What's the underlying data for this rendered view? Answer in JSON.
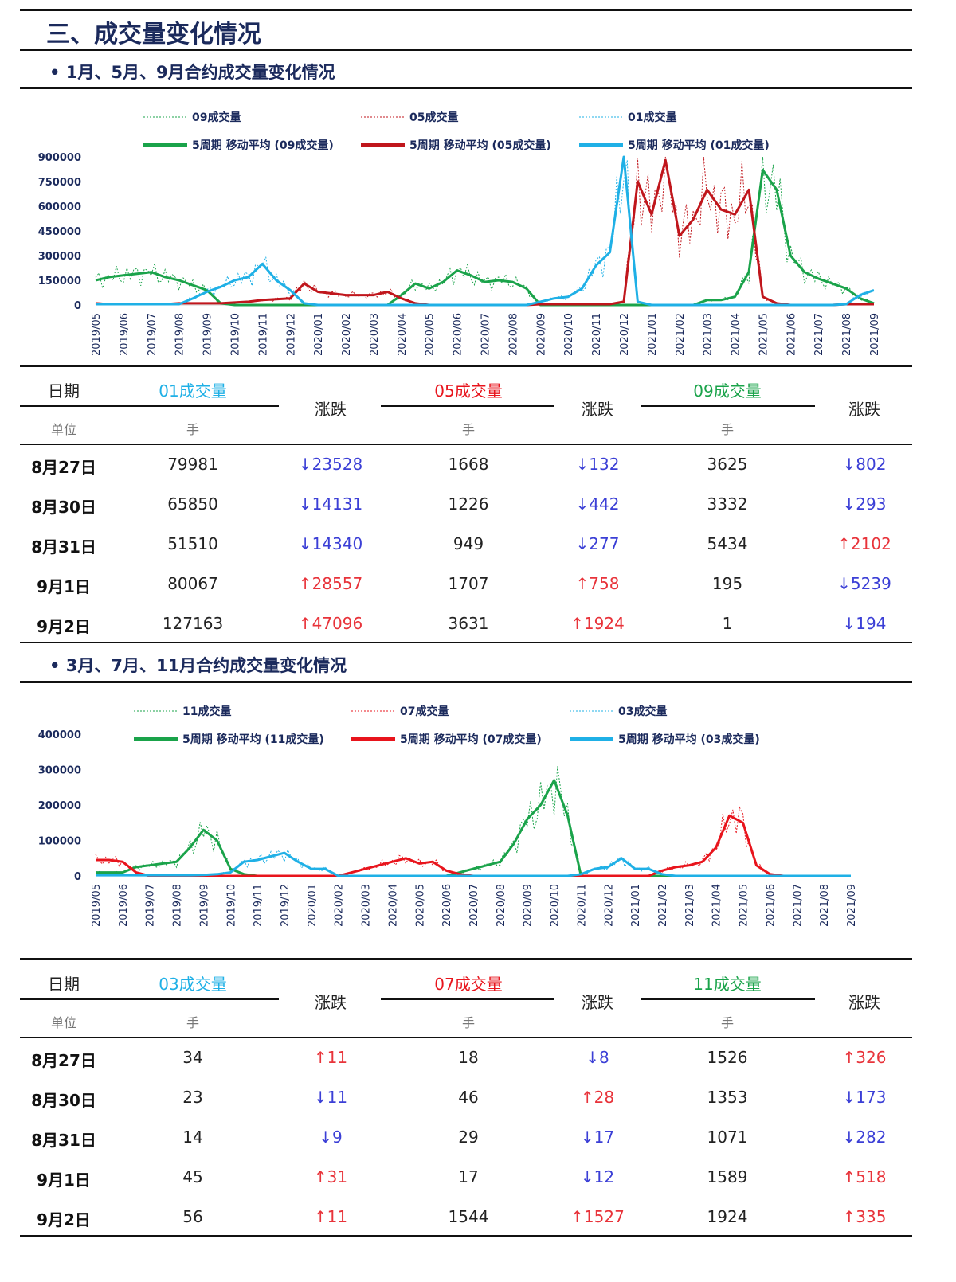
{
  "page_title": "三、成交量变化情况",
  "section1": {
    "title": "• 1月、5月、9月合约成交量变化情况",
    "chart_data": {
      "type": "line",
      "x_ticks": [
        "2019/05",
        "2019/06",
        "2019/07",
        "2019/08",
        "2019/09",
        "2019/10",
        "2019/11",
        "2019/12",
        "2020/01",
        "2020/02",
        "2020/03",
        "2020/04",
        "2020/05",
        "2020/06",
        "2020/07",
        "2020/08",
        "2020/09",
        "2020/10",
        "2020/11",
        "2020/12",
        "2021/01",
        "2021/02",
        "2021/03",
        "2021/04",
        "2021/05",
        "2021/06",
        "2021/07",
        "2021/08",
        "2021/09"
      ],
      "x_resolution": "semi-monthly from 2019/05 to 2021/09",
      "y_ticks": [
        "0",
        "150000",
        "300000",
        "450000",
        "600000",
        "750000",
        "900000"
      ],
      "ylim": [
        0,
        900000
      ],
      "legend_placement": "top",
      "legend": [
        "09成交量",
        "05成交量",
        "01成交量",
        "5周期 移动平均 (09成交量)",
        "5周期 移动平均 (05成交量)",
        "5周期 移动平均 (01成交量)"
      ],
      "series": [
        {
          "name": "5周期 移动平均 (09成交量)",
          "raw_name": "09成交量",
          "color": "#1aa34a",
          "values": [
            150000,
            170000,
            180000,
            190000,
            200000,
            170000,
            150000,
            120000,
            90000,
            10000,
            0,
            0,
            0,
            0,
            0,
            0,
            0,
            0,
            0,
            0,
            0,
            0,
            60000,
            130000,
            100000,
            140000,
            210000,
            180000,
            140000,
            150000,
            140000,
            100000,
            0,
            0,
            0,
            0,
            0,
            0,
            0,
            0,
            0,
            0,
            0,
            0,
            30000,
            30000,
            50000,
            200000,
            820000,
            700000,
            300000,
            200000,
            160000,
            130000,
            100000,
            40000,
            10000
          ]
        },
        {
          "name": "5周期 移动平均 (05成交量)",
          "raw_name": "05成交量",
          "color": "#c0161c",
          "values": [
            10000,
            5000,
            5000,
            5000,
            5000,
            5000,
            10000,
            10000,
            10000,
            10000,
            15000,
            20000,
            30000,
            35000,
            40000,
            130000,
            80000,
            70000,
            60000,
            60000,
            60000,
            80000,
            40000,
            10000,
            0,
            0,
            0,
            0,
            0,
            0,
            0,
            0,
            5000,
            5000,
            5000,
            5000,
            5000,
            5000,
            20000,
            750000,
            550000,
            880000,
            420000,
            520000,
            700000,
            580000,
            550000,
            700000,
            50000,
            10000,
            0,
            0,
            0,
            0,
            5000,
            5000,
            5000
          ]
        },
        {
          "name": "5周期 移动平均 (01成交量)",
          "raw_name": "01成交量",
          "color": "#1fb0e6",
          "values": [
            5000,
            5000,
            5000,
            5000,
            5000,
            5000,
            5000,
            40000,
            80000,
            110000,
            150000,
            170000,
            250000,
            150000,
            90000,
            10000,
            0,
            0,
            0,
            0,
            0,
            0,
            0,
            0,
            0,
            0,
            0,
            0,
            0,
            0,
            0,
            0,
            20000,
            40000,
            50000,
            100000,
            240000,
            320000,
            900000,
            20000,
            0,
            0,
            0,
            0,
            0,
            0,
            0,
            0,
            0,
            0,
            0,
            0,
            0,
            0,
            5000,
            60000,
            90000
          ]
        }
      ]
    },
    "table": {
      "headers": {
        "date": "日期",
        "c1": "01成交量",
        "chg": "涨跌",
        "c2": "05成交量",
        "c3": "09成交量",
        "unit_label": "单位",
        "unit": "手"
      },
      "header_colors": {
        "c1": "#1fb0e6",
        "c2": "#e8141c",
        "c3": "#1aa34a"
      },
      "rows": [
        {
          "date": "8月27日",
          "v1": "79981",
          "d1": "↓23528",
          "v2": "1668",
          "d2": "↓132",
          "v3": "3625",
          "d3": "↓802"
        },
        {
          "date": "8月30日",
          "v1": "65850",
          "d1": "↓14131",
          "v2": "1226",
          "d2": "↓442",
          "v3": "3332",
          "d3": "↓293"
        },
        {
          "date": "8月31日",
          "v1": "51510",
          "d1": "↓14340",
          "v2": "949",
          "d2": "↓277",
          "v3": "5434",
          "d3": "↑2102"
        },
        {
          "date": "9月1日",
          "v1": "80067",
          "d1": "↑28557",
          "v2": "1707",
          "d2": "↑758",
          "v3": "195",
          "d3": "↓5239"
        },
        {
          "date": "9月2日",
          "v1": "127163",
          "d1": "↑47096",
          "v2": "3631",
          "d2": "↑1924",
          "v3": "1",
          "d3": "↓194"
        }
      ]
    }
  },
  "section2": {
    "title": "• 3月、7月、11月合约成交量变化情况",
    "chart_data": {
      "type": "line",
      "x_ticks": [
        "2019/05",
        "2019/06",
        "2019/07",
        "2019/08",
        "2019/09",
        "2019/10",
        "2019/11",
        "2019/12",
        "2020/01",
        "2020/02",
        "2020/03",
        "2020/04",
        "2020/05",
        "2020/06",
        "2020/07",
        "2020/08",
        "2020/09",
        "2020/10",
        "2020/11",
        "2020/12",
        "2021/01",
        "2021/02",
        "2021/03",
        "2021/04",
        "2021/05",
        "2021/06",
        "2021/07",
        "2021/08",
        "2021/09"
      ],
      "x_resolution": "semi-monthly from 2019/05 to 2021/09",
      "y_ticks": [
        "0",
        "100000",
        "200000",
        "300000",
        "400000"
      ],
      "ylim": [
        0,
        400000
      ],
      "legend_placement": "top",
      "legend": [
        "11成交量",
        "07成交量",
        "03成交量",
        "5周期 移动平均 (11成交量)",
        "5周期 移动平均 (07成交量)",
        "5周期 移动平均 (03成交量)"
      ],
      "series": [
        {
          "name": "5周期 移动平均 (11成交量)",
          "raw_name": "11成交量",
          "color": "#1aa34a",
          "values": [
            10000,
            10000,
            10000,
            25000,
            30000,
            35000,
            40000,
            80000,
            130000,
            100000,
            20000,
            5000,
            0,
            0,
            0,
            0,
            0,
            0,
            0,
            0,
            0,
            0,
            0,
            0,
            0,
            0,
            0,
            10000,
            20000,
            30000,
            40000,
            90000,
            160000,
            200000,
            270000,
            170000,
            0,
            0,
            0,
            0,
            0,
            0,
            0,
            0,
            0,
            0,
            0,
            0,
            0,
            0,
            0,
            0,
            0,
            0,
            0,
            0,
            0
          ]
        },
        {
          "name": "5周期 移动平均 (07成交量)",
          "raw_name": "07成交量",
          "color": "#e8141c",
          "values": [
            45000,
            45000,
            40000,
            10000,
            0,
            0,
            0,
            0,
            0,
            0,
            0,
            0,
            0,
            0,
            0,
            0,
            0,
            0,
            0,
            10000,
            20000,
            30000,
            40000,
            50000,
            35000,
            40000,
            15000,
            5000,
            0,
            0,
            0,
            0,
            0,
            0,
            0,
            0,
            0,
            0,
            0,
            0,
            0,
            0,
            15000,
            25000,
            30000,
            40000,
            80000,
            170000,
            150000,
            30000,
            5000,
            0,
            0,
            0,
            0,
            0,
            0
          ]
        },
        {
          "name": "5周期 移动平均 (03成交量)",
          "raw_name": "03成交量",
          "color": "#1fb0e6",
          "values": [
            2000,
            2000,
            2000,
            2000,
            2000,
            2000,
            2000,
            2000,
            3000,
            5000,
            10000,
            40000,
            45000,
            55000,
            65000,
            40000,
            20000,
            20000,
            0,
            0,
            0,
            0,
            0,
            0,
            0,
            0,
            0,
            0,
            0,
            0,
            0,
            0,
            0,
            0,
            0,
            0,
            5000,
            20000,
            25000,
            50000,
            20000,
            20000,
            5000,
            0,
            0,
            0,
            0,
            0,
            0,
            0,
            0,
            0,
            0,
            0,
            0,
            0,
            0
          ]
        }
      ]
    },
    "table": {
      "headers": {
        "date": "日期",
        "c1": "03成交量",
        "chg": "涨跌",
        "c2": "07成交量",
        "c3": "11成交量",
        "unit_label": "单位",
        "unit": "手"
      },
      "header_colors": {
        "c1": "#1fb0e6",
        "c2": "#e8141c",
        "c3": "#1aa34a"
      },
      "rows": [
        {
          "date": "8月27日",
          "v1": "34",
          "d1": "↑11",
          "v2": "18",
          "d2": "↓8",
          "v3": "1526",
          "d3": "↑326"
        },
        {
          "date": "8月30日",
          "v1": "23",
          "d1": "↓11",
          "v2": "46",
          "d2": "↑28",
          "v3": "1353",
          "d3": "↓173"
        },
        {
          "date": "8月31日",
          "v1": "14",
          "d1": "↓9",
          "v2": "29",
          "d2": "↓17",
          "v3": "1071",
          "d3": "↓282"
        },
        {
          "date": "9月1日",
          "v1": "45",
          "d1": "↑31",
          "v2": "17",
          "d2": "↓12",
          "v3": "1589",
          "d3": "↑518"
        },
        {
          "date": "9月2日",
          "v1": "56",
          "d1": "↑11",
          "v2": "1544",
          "d2": "↑1527",
          "v3": "1924",
          "d3": "↑335"
        }
      ]
    }
  }
}
